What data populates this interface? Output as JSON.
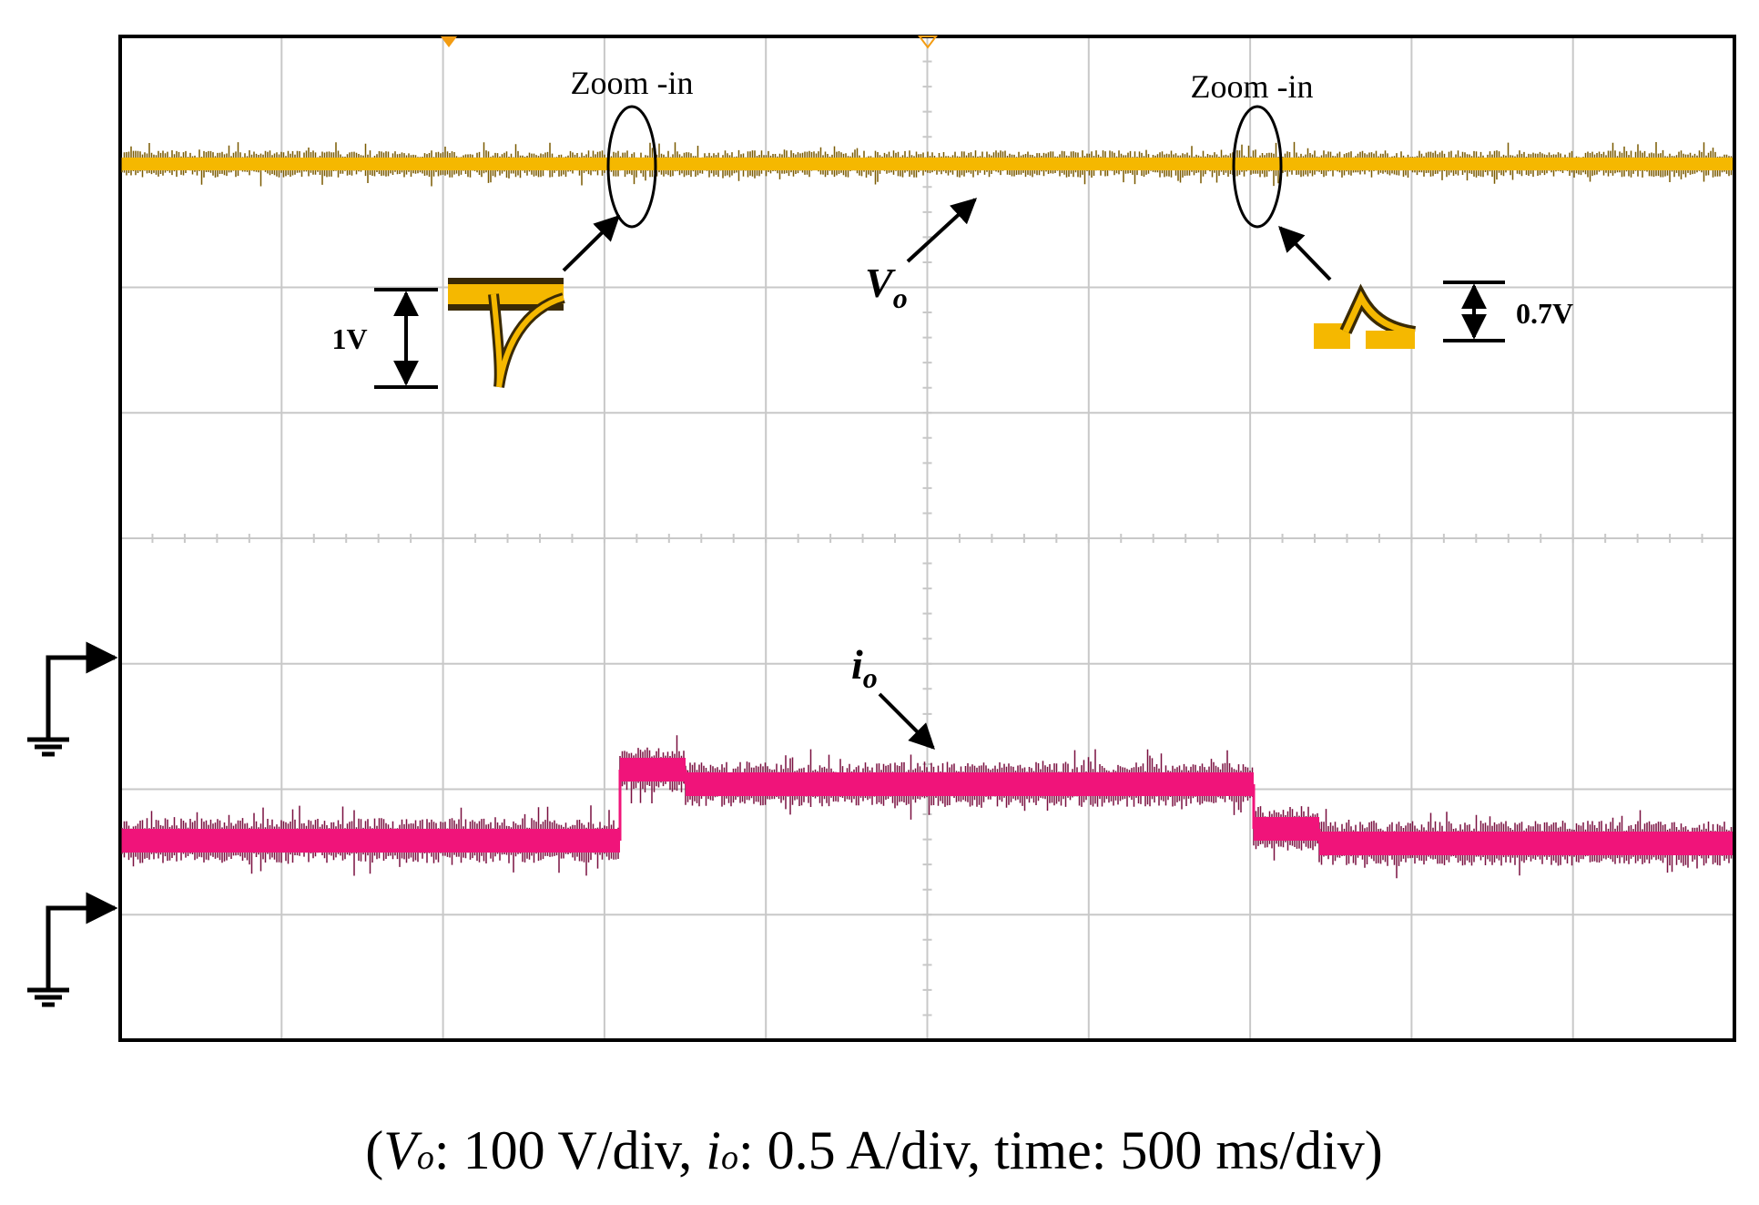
{
  "annotations": {
    "zoom_in_left": "Zoom -in",
    "zoom_in_right": "Zoom -in",
    "vo_label": {
      "main": "V",
      "sub": "o"
    },
    "io_label": {
      "main": "i",
      "sub": "o"
    },
    "dip": "1V",
    "overshoot": "0.7V"
  },
  "caption": {
    "open": "(",
    "vo": "V",
    "vo_sub": "o",
    "vo_scale": ": 100 V/div, ",
    "io": "i",
    "io_sub": "o",
    "rest": ": 0.5 A/div, time: 500 ms/div)"
  }
}
